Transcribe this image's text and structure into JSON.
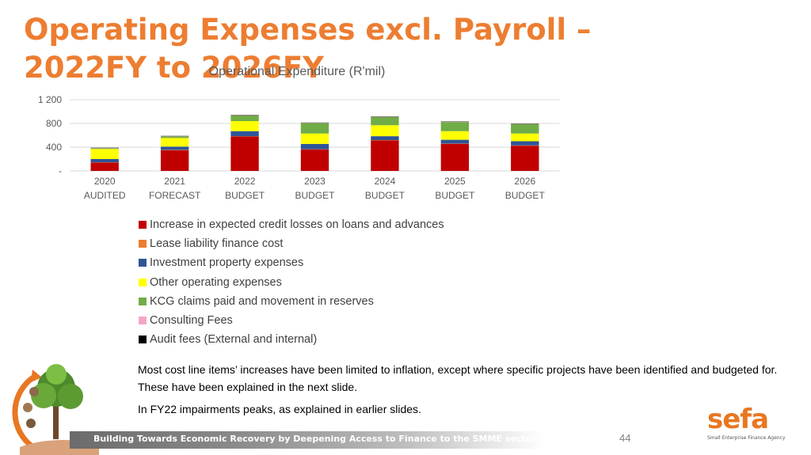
{
  "slide": {
    "title": "Operating Expenses excl. Payroll – 2022FY to 2026FY",
    "notes": [
      "Most cost line items’ increases have been limited to inflation, except where specific projects have been identified and budgeted for. These have been explained in the next slide.",
      "In FY22 impairments peaks, as explained in earlier slides."
    ],
    "footer_banner": "Building Towards Economic Recovery by Deepening Access to Finance to the SMME sector",
    "page_number": "44",
    "logo": {
      "name": "sefa",
      "tagline": "Small Enterprise Finance Agency"
    }
  },
  "chart_data": {
    "type": "bar",
    "stacked": true,
    "title": "Operational Expenditure (R'mil)",
    "categories": [
      [
        "2020",
        "AUDITED"
      ],
      [
        "2021",
        "FORECAST"
      ],
      [
        "2022",
        "BUDGET"
      ],
      [
        "2023",
        "BUDGET"
      ],
      [
        "2024",
        "BUDGET"
      ],
      [
        "2025",
        "BUDGET"
      ],
      [
        "2026",
        "BUDGET"
      ]
    ],
    "ylim": [
      0,
      1200
    ],
    "yticks": [
      0,
      400,
      800,
      1200
    ],
    "ytick_labels": [
      "-",
      "400",
      "800",
      "1 200"
    ],
    "grid": true,
    "legend_position": "bottom",
    "series": [
      {
        "name": "Increase in expected credit losses on loans and advances",
        "color": "#c00000",
        "values": [
          140,
          350,
          580,
          360,
          515,
          455,
          425
        ]
      },
      {
        "name": "Lease liability finance cost",
        "color": "#ed7d31",
        "values": [
          5,
          5,
          5,
          5,
          5,
          5,
          5
        ]
      },
      {
        "name": "Investment property expenses",
        "color": "#2f5597",
        "values": [
          55,
          55,
          85,
          90,
          65,
          65,
          70
        ]
      },
      {
        "name": "Other operating expenses",
        "color": "#ffff00",
        "values": [
          170,
          145,
          170,
          175,
          185,
          145,
          130
        ]
      },
      {
        "name": "KCG claims paid and movement in reserves",
        "color": "#70ad47",
        "values": [
          10,
          25,
          95,
          175,
          140,
          155,
          160
        ]
      },
      {
        "name": "Consulting Fees",
        "color": "#f4a6c8",
        "values": [
          5,
          5,
          5,
          5,
          5,
          5,
          5
        ]
      },
      {
        "name": "Audit fees (External and internal)",
        "color": "#000000",
        "values": [
          5,
          5,
          5,
          5,
          5,
          5,
          5
        ]
      }
    ]
  }
}
